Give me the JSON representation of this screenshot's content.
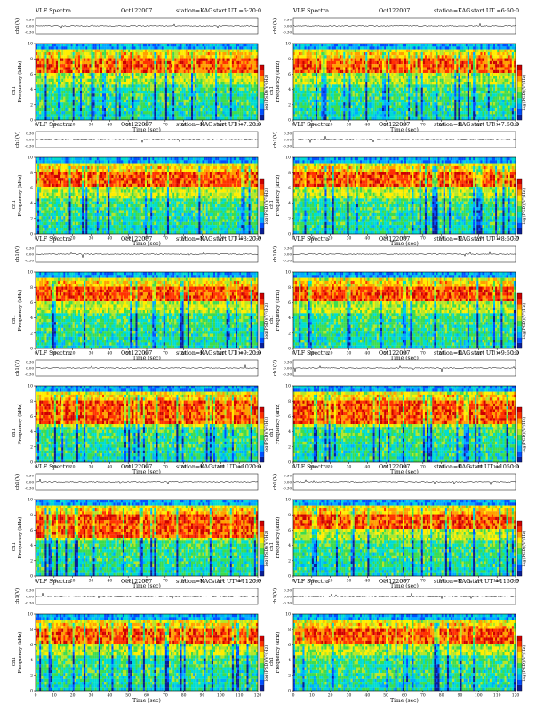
{
  "figure": {
    "colors": {
      "palette": [
        "#0a1e96",
        "#0050ff",
        "#00aaff",
        "#00dcd2",
        "#3cdc50",
        "#b4e628",
        "#ffee00",
        "#ffa000",
        "#ff3200",
        "#cc0000"
      ],
      "axis": "#000000",
      "background": "#ffffff"
    }
  },
  "chart_data": [
    {
      "type": "heatmap",
      "label": "VLF Spectra",
      "date": "Oct122007",
      "station": "station=KAG",
      "start_time": "start UT =6:20:0",
      "ch_label": "ch1(V)",
      "ch_ticks": [
        "0.30",
        "0.00",
        "-0.30"
      ],
      "freq_label": "Frequency (kHz)",
      "freq_sub": "ch1",
      "freq_ticks": [
        "10",
        "8",
        "6",
        "4",
        "2",
        "0"
      ],
      "xlabel": "Time (sec)",
      "xticks": [
        "0",
        "10",
        "20",
        "30",
        "40",
        "50",
        "60",
        "70",
        "80",
        "90",
        "100",
        "110",
        "120"
      ],
      "colorbar_label": "log(PSD)(V²/Hz)",
      "xlim": [
        0,
        120
      ],
      "ylim": [
        0,
        10
      ],
      "dominant_band_khz": [
        6,
        8
      ]
    },
    {
      "type": "heatmap",
      "label": "VLF Spectra",
      "date": "Oct122007",
      "station": "station=KAG",
      "start_time": "start UT =6:50:0",
      "ch_label": "ch1(V)",
      "ch_ticks": [
        "0.30",
        "0.00",
        "-0.30"
      ],
      "freq_label": "Frequency (kHz)",
      "freq_sub": "ch1",
      "freq_ticks": [
        "10",
        "8",
        "6",
        "4",
        "2",
        "0"
      ],
      "xlabel": "Time (sec)",
      "xticks": [
        "0",
        "10",
        "20",
        "30",
        "40",
        "50",
        "60",
        "70",
        "80",
        "90",
        "100",
        "110",
        "120"
      ],
      "colorbar_label": "log(PSD)(V²/Hz)",
      "xlim": [
        0,
        120
      ],
      "ylim": [
        0,
        10
      ],
      "dominant_band_khz": [
        6,
        8
      ]
    },
    {
      "type": "heatmap",
      "label": "VLF Spectra",
      "date": "Oct122007",
      "station": "station=KAG",
      "start_time": "start UT =7:20:0",
      "ch_label": "ch1(V)",
      "ch_ticks": [
        "0.30",
        "0.00",
        "-0.30"
      ],
      "freq_label": "Frequency (kHz)",
      "freq_sub": "ch1",
      "freq_ticks": [
        "10",
        "8",
        "6",
        "4",
        "2",
        "0"
      ],
      "xlabel": "Time (sec)",
      "xticks": [
        "0",
        "10",
        "20",
        "30",
        "40",
        "50",
        "60",
        "70",
        "80",
        "90",
        "100",
        "110",
        "120"
      ],
      "colorbar_label": "log(PSD)(V²/Hz)",
      "xlim": [
        0,
        120
      ],
      "ylim": [
        0,
        10
      ],
      "dominant_band_khz": [
        6,
        8
      ]
    },
    {
      "type": "heatmap",
      "label": "VLF Spectra",
      "date": "Oct122007",
      "station": "station=KAG",
      "start_time": "start UT =7:50:0",
      "ch_label": "ch1(V)",
      "ch_ticks": [
        "0.30",
        "0.00",
        "-0.30"
      ],
      "freq_label": "Frequency (kHz)",
      "freq_sub": "ch1",
      "freq_ticks": [
        "10",
        "8",
        "6",
        "4",
        "2",
        "0"
      ],
      "xlabel": "Time (sec)",
      "xticks": [
        "0",
        "10",
        "20",
        "30",
        "40",
        "50",
        "60",
        "70",
        "80",
        "90",
        "100",
        "110",
        "120"
      ],
      "colorbar_label": "log(PSD)(V²/Hz)",
      "xlim": [
        0,
        120
      ],
      "ylim": [
        0,
        10
      ],
      "dominant_band_khz": [
        6,
        8
      ]
    },
    {
      "type": "heatmap",
      "label": "VLF Spectra",
      "date": "Oct122007",
      "station": "station=KAG",
      "start_time": "start UT =8:20:0",
      "ch_label": "ch1(V)",
      "ch_ticks": [
        "0.30",
        "0.00",
        "-0.30"
      ],
      "freq_label": "Frequency (kHz)",
      "freq_sub": "ch1",
      "freq_ticks": [
        "10",
        "8",
        "6",
        "4",
        "2",
        "0"
      ],
      "xlabel": "Time (sec)",
      "xticks": [
        "0",
        "10",
        "20",
        "30",
        "40",
        "50",
        "60",
        "70",
        "80",
        "90",
        "100",
        "110",
        "120"
      ],
      "colorbar_label": "log(PSD)(V²/Hz)",
      "xlim": [
        0,
        120
      ],
      "ylim": [
        0,
        10
      ],
      "dominant_band_khz": [
        6,
        8
      ]
    },
    {
      "type": "heatmap",
      "label": "VLF Spectra",
      "date": "Oct122007",
      "station": "station=KAG",
      "start_time": "start UT =8:50:0",
      "ch_label": "ch1(V)",
      "ch_ticks": [
        "0.30",
        "0.00",
        "-0.30"
      ],
      "freq_label": "Frequency (kHz)",
      "freq_sub": "ch1",
      "freq_ticks": [
        "10",
        "8",
        "6",
        "4",
        "2",
        "0"
      ],
      "xlabel": "Time (sec)",
      "xticks": [
        "0",
        "10",
        "20",
        "30",
        "40",
        "50",
        "60",
        "70",
        "80",
        "90",
        "100",
        "110",
        "120"
      ],
      "colorbar_label": "log(PSD)(V²/Hz)",
      "xlim": [
        0,
        120
      ],
      "ylim": [
        0,
        10
      ],
      "dominant_band_khz": [
        6,
        8
      ]
    },
    {
      "type": "heatmap",
      "label": "VLF Spectra",
      "date": "Oct122007",
      "station": "station=KAG",
      "start_time": "start UT =9:20:0",
      "ch_label": "ch1(V)",
      "ch_ticks": [
        "0.30",
        "0.00",
        "-0.30"
      ],
      "freq_label": "Frequency (kHz)",
      "freq_sub": "ch1",
      "freq_ticks": [
        "10",
        "8",
        "6",
        "4",
        "2",
        "0"
      ],
      "xlabel": "Time (sec)",
      "xticks": [
        "0",
        "10",
        "20",
        "30",
        "40",
        "50",
        "60",
        "70",
        "80",
        "90",
        "100",
        "110",
        "120"
      ],
      "colorbar_label": "log(PSD)(V²/Hz)",
      "xlim": [
        0,
        120
      ],
      "ylim": [
        0,
        10
      ],
      "dominant_band_khz": [
        5,
        8
      ]
    },
    {
      "type": "heatmap",
      "label": "VLF Spectra",
      "date": "Oct122007",
      "station": "station=KAG",
      "start_time": "start UT =9:50:0",
      "ch_label": "ch1(V)",
      "ch_ticks": [
        "0.30",
        "0.00",
        "-0.30"
      ],
      "freq_label": "Frequency (kHz)",
      "freq_sub": "ch1",
      "freq_ticks": [
        "10",
        "8",
        "6",
        "4",
        "2",
        "0"
      ],
      "xlabel": "Time (sec)",
      "xticks": [
        "0",
        "10",
        "20",
        "30",
        "40",
        "50",
        "60",
        "70",
        "80",
        "90",
        "100",
        "110",
        "120"
      ],
      "colorbar_label": "log(PSD)(V²/Hz)",
      "xlim": [
        0,
        120
      ],
      "ylim": [
        0,
        10
      ],
      "dominant_band_khz": [
        5,
        8
      ]
    },
    {
      "type": "heatmap",
      "label": "VLF Spectra",
      "date": "Oct122007",
      "station": "station=KAG",
      "start_time": "start UT =1020:0",
      "ch_label": "ch1(V)",
      "ch_ticks": [
        "0.30",
        "0.00",
        "-0.30"
      ],
      "freq_label": "Frequency (kHz)",
      "freq_sub": "ch1",
      "freq_ticks": [
        "10",
        "8",
        "6",
        "4",
        "2",
        "0"
      ],
      "xlabel": "Time (sec)",
      "xticks": [
        "0",
        "10",
        "20",
        "30",
        "40",
        "50",
        "60",
        "70",
        "80",
        "90",
        "100",
        "110",
        "120"
      ],
      "colorbar_label": "log(PSD)(V²/Hz)",
      "xlim": [
        0,
        120
      ],
      "ylim": [
        0,
        10
      ],
      "dominant_band_khz": [
        5,
        8
      ]
    },
    {
      "type": "heatmap",
      "label": "VLF Spectra",
      "date": "Oct122007",
      "station": "station=KAG",
      "start_time": "start UT =1050:0",
      "ch_label": "ch1(V)",
      "ch_ticks": [
        "0.30",
        "0.00",
        "-0.30"
      ],
      "freq_label": "Frequency (kHz)",
      "freq_sub": "ch1",
      "freq_ticks": [
        "10",
        "8",
        "6",
        "4",
        "2",
        "0"
      ],
      "xlabel": "Time (sec)",
      "xticks": [
        "0",
        "10",
        "20",
        "30",
        "40",
        "50",
        "60",
        "70",
        "80",
        "90",
        "100",
        "110",
        "120"
      ],
      "colorbar_label": "log(PSD)(V²/Hz)",
      "xlim": [
        0,
        120
      ],
      "ylim": [
        0,
        10
      ],
      "dominant_band_khz": [
        6,
        8
      ]
    },
    {
      "type": "heatmap",
      "label": "VLF Spectra",
      "date": "Oct122007",
      "station": "station=KAG",
      "start_time": "start UT =1120:0",
      "ch_label": "ch1(V)",
      "ch_ticks": [
        "0.30",
        "0.00",
        "-0.30"
      ],
      "freq_label": "Frequency (kHz)",
      "freq_sub": "ch1",
      "freq_ticks": [
        "10",
        "8",
        "6",
        "4",
        "2",
        "0"
      ],
      "xlabel": "Time (sec)",
      "xticks": [
        "0",
        "10",
        "20",
        "30",
        "40",
        "50",
        "60",
        "70",
        "80",
        "90",
        "100",
        "110",
        "120"
      ],
      "colorbar_label": "log(PSD)(V²/Hz)",
      "xlim": [
        0,
        120
      ],
      "ylim": [
        0,
        10
      ],
      "dominant_band_khz": [
        6,
        8
      ]
    },
    {
      "type": "heatmap",
      "label": "VLF Spectra",
      "date": "Oct122007",
      "station": "station=KAG",
      "start_time": "start UT =1150:0",
      "ch_label": "ch1(V)",
      "ch_ticks": [
        "0.30",
        "0.00",
        "-0.30"
      ],
      "freq_label": "Frequency (kHz)",
      "freq_sub": "ch1",
      "freq_ticks": [
        "10",
        "8",
        "6",
        "4",
        "2",
        "0"
      ],
      "xlabel": "Time (sec)",
      "xticks": [
        "0",
        "10",
        "20",
        "30",
        "40",
        "50",
        "60",
        "70",
        "80",
        "90",
        "100",
        "110",
        "120"
      ],
      "colorbar_label": "log(PSD)(V²/Hz)",
      "xlim": [
        0,
        120
      ],
      "ylim": [
        0,
        10
      ],
      "dominant_band_khz": [
        6,
        8
      ]
    }
  ]
}
